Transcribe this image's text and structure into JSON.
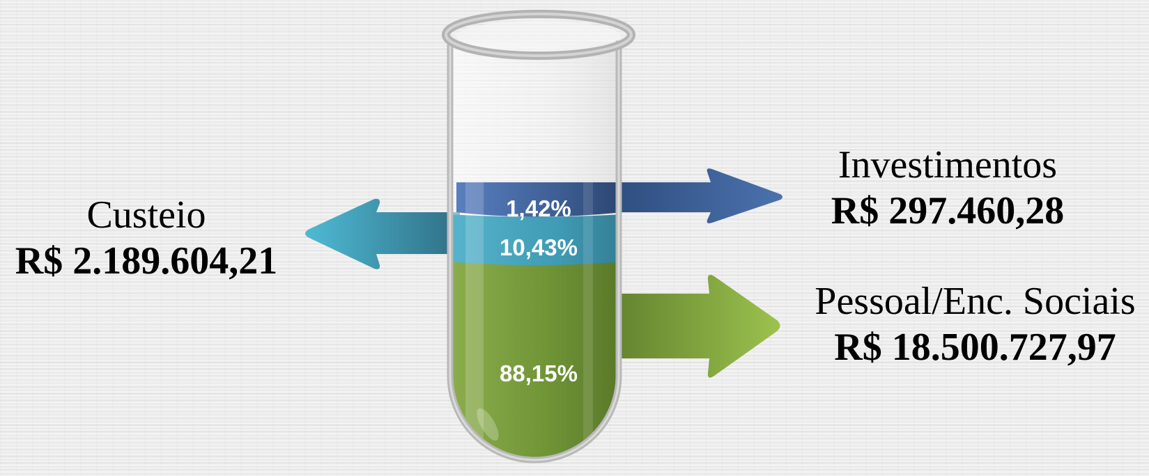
{
  "diagram": {
    "segments": [
      {
        "name": "Investimentos",
        "value": "R$ 297.460,28",
        "percent_label": "1,42%",
        "percent": 1.42,
        "direction": "right",
        "color": "#3e5f95"
      },
      {
        "name": "Custeio",
        "value": "R$ 2.189.604,21",
        "percent_label": "10,43%",
        "percent": 10.43,
        "direction": "left",
        "color": "#3aa3bd"
      },
      {
        "name": "Pessoal/Enc. Sociais",
        "value": "R$ 18.500.727,97",
        "percent_label": "88,15%",
        "percent": 88.15,
        "direction": "right",
        "color": "#7a9e3e"
      }
    ]
  }
}
